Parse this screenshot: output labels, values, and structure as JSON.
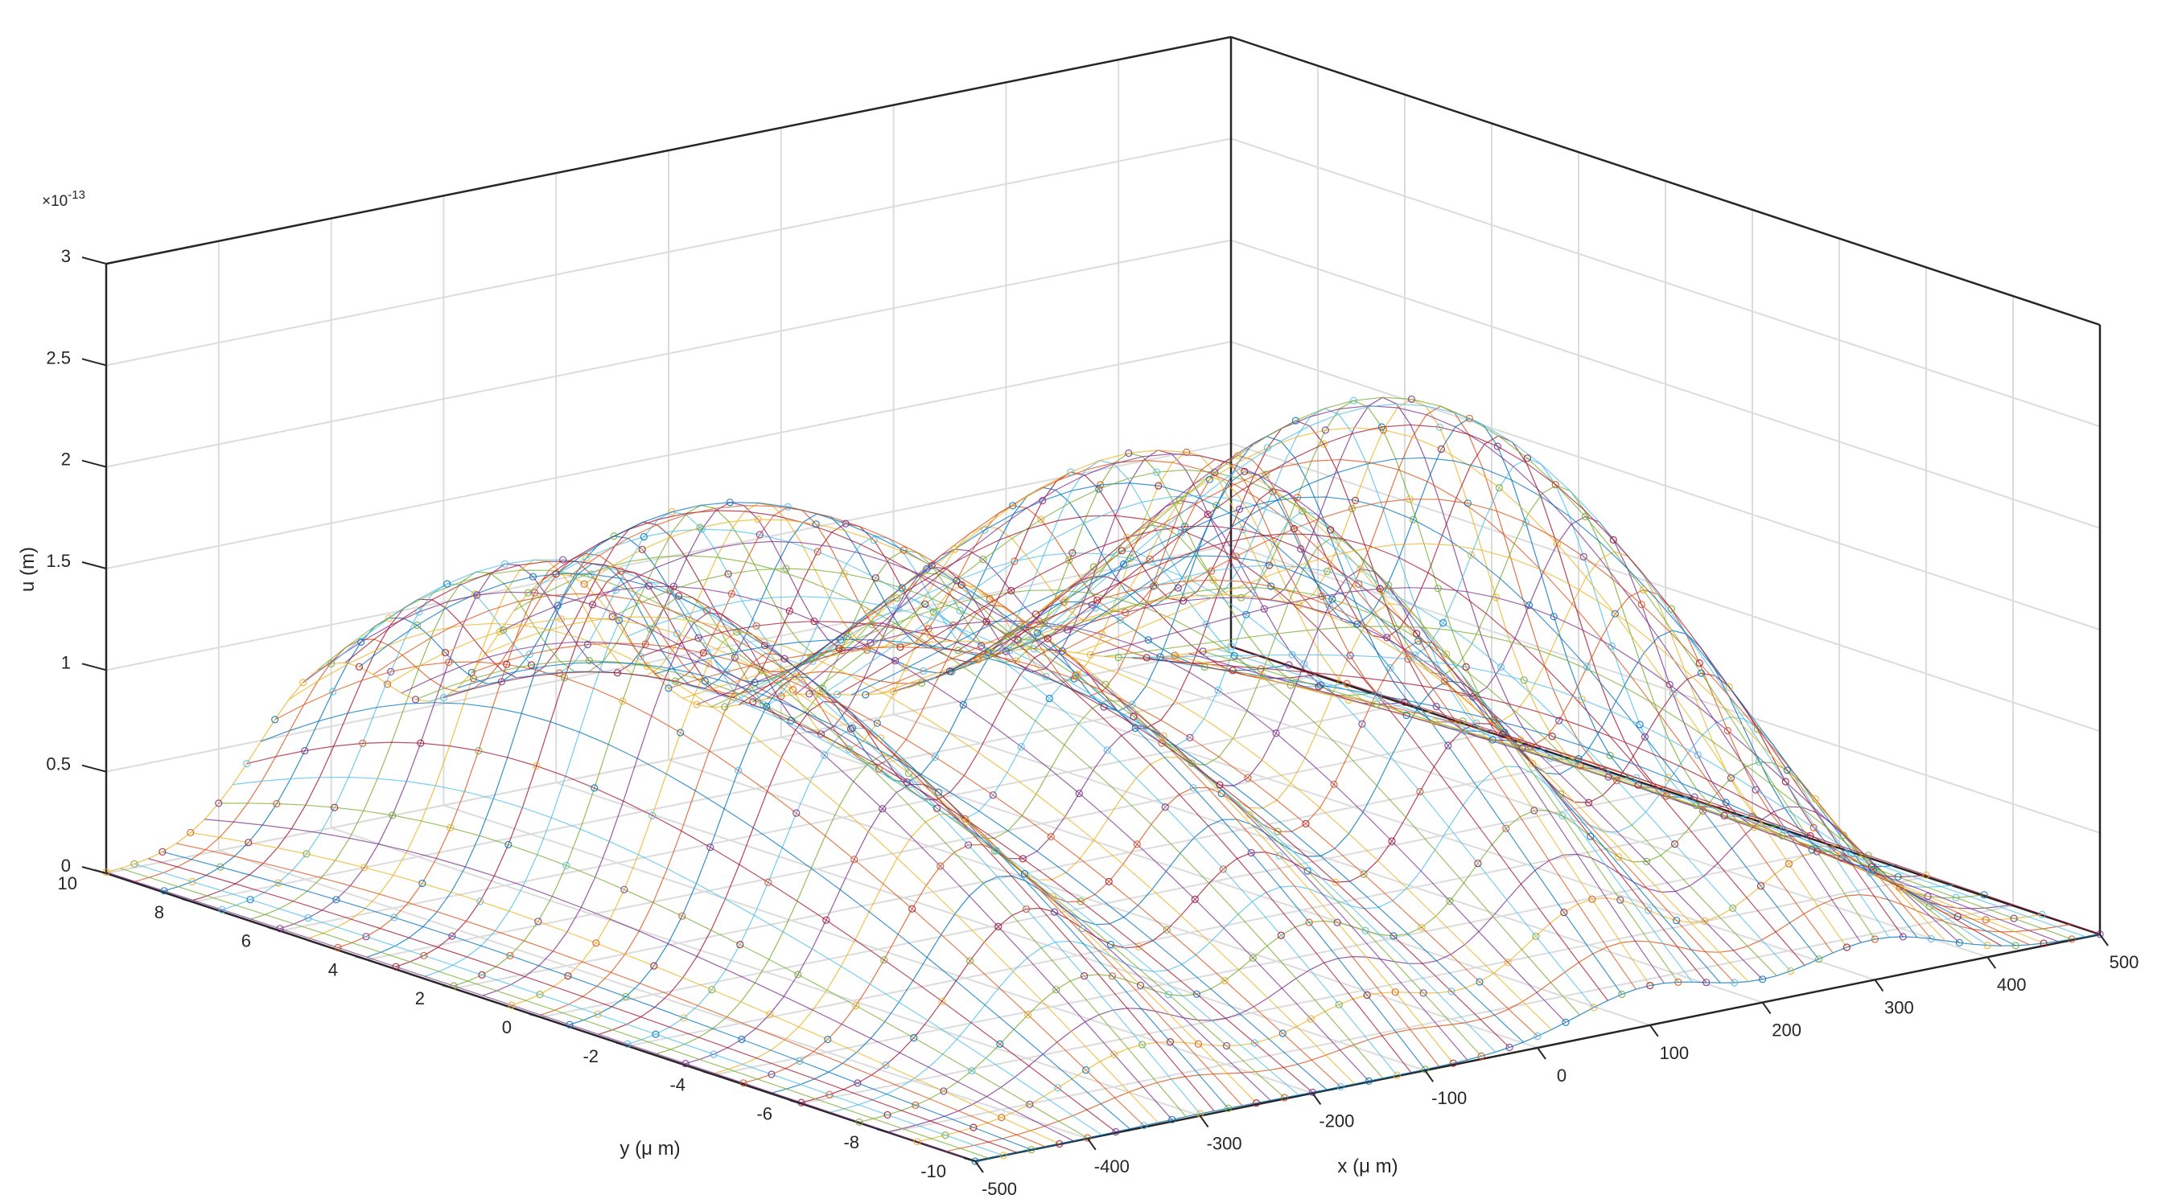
{
  "chart_data": {
    "type": "surface3d",
    "description_style": "mesh with circle markers, colored lines",
    "xlabel": "x (μ m)",
    "ylabel": "y (μ m)",
    "zlabel": "u (m)",
    "z_exponent_label": "×10",
    "z_exponent_power": "-13",
    "xlim": [
      -500,
      500
    ],
    "ylim": [
      -10,
      10
    ],
    "zlim": [
      0,
      3
    ],
    "x_ticks": [
      -500,
      -400,
      -300,
      -200,
      -100,
      0,
      100,
      200,
      300,
      400,
      500
    ],
    "y_ticks": [
      -10,
      -8,
      -6,
      -4,
      -2,
      0,
      2,
      4,
      6,
      8,
      10
    ],
    "z_ticks": [
      0,
      0.5,
      1,
      1.5,
      2,
      2.5,
      3
    ],
    "x_tick_labels": [
      "-500",
      "-400",
      "-300",
      "-200",
      "-100",
      "0",
      "100",
      "200",
      "300",
      "400",
      "500"
    ],
    "y_tick_labels": [
      "-10",
      "-8",
      "-6",
      "-4",
      "-2",
      "0",
      "2",
      "4",
      "6",
      "8",
      "10"
    ],
    "z_tick_labels": [
      "0",
      "0.5",
      "1",
      "1.5",
      "2",
      "2.5",
      "3"
    ],
    "grid": true,
    "surface_model": {
      "z_units": "1e-13 m",
      "peaks": [
        {
          "x": -300,
          "y": 7,
          "height": 2.05
        },
        {
          "x": -100,
          "y": 9,
          "height": 2.3
        },
        {
          "x": 100,
          "y": 0,
          "height": 2.05
        },
        {
          "x": 300,
          "y": 0,
          "height": 2.1
        }
      ],
      "x_half_width_um": 90,
      "y_extent_um": 10
    },
    "palette": [
      "#0072bd",
      "#d95319",
      "#edb120",
      "#7e2f8e",
      "#77ac30",
      "#4dbeee",
      "#a2142f"
    ]
  }
}
